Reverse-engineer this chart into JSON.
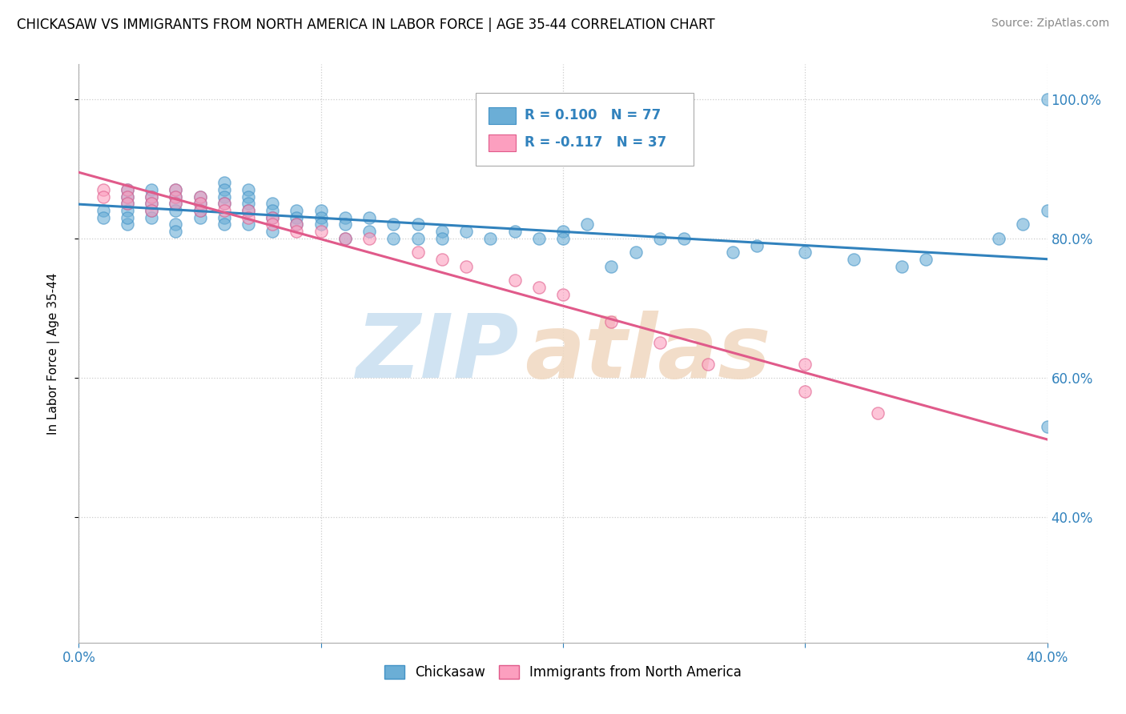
{
  "title": "CHICKASAW VS IMMIGRANTS FROM NORTH AMERICA IN LABOR FORCE | AGE 35-44 CORRELATION CHART",
  "source": "Source: ZipAtlas.com",
  "ylabel": "In Labor Force | Age 35-44",
  "xlim": [
    0.0,
    0.4
  ],
  "ylim": [
    0.22,
    1.05
  ],
  "xtick_labels": [
    "0.0%",
    "",
    "",
    "",
    "40.0%"
  ],
  "ytick_labels_right": [
    "40.0%",
    "60.0%",
    "80.0%",
    "100.0%"
  ],
  "yticks_right": [
    0.4,
    0.6,
    0.8,
    1.0
  ],
  "legend_line1": "R = 0.100   N = 77",
  "legend_line2": "R = -0.117   N = 37",
  "blue_color": "#6baed6",
  "blue_edge_color": "#4292c6",
  "pink_color": "#fc9fbf",
  "pink_edge_color": "#e05a8a",
  "blue_line_color": "#3182bd",
  "pink_line_color": "#e05a8a",
  "watermark_zip": "ZIP",
  "watermark_atlas": "atlas",
  "blue_scatter_x": [
    0.01,
    0.01,
    0.02,
    0.02,
    0.02,
    0.02,
    0.02,
    0.02,
    0.03,
    0.03,
    0.03,
    0.03,
    0.03,
    0.04,
    0.04,
    0.04,
    0.04,
    0.04,
    0.04,
    0.05,
    0.05,
    0.05,
    0.05,
    0.06,
    0.06,
    0.06,
    0.06,
    0.06,
    0.06,
    0.07,
    0.07,
    0.07,
    0.07,
    0.07,
    0.08,
    0.08,
    0.08,
    0.08,
    0.09,
    0.09,
    0.09,
    0.1,
    0.1,
    0.1,
    0.11,
    0.11,
    0.11,
    0.12,
    0.12,
    0.13,
    0.13,
    0.14,
    0.14,
    0.15,
    0.15,
    0.16,
    0.17,
    0.18,
    0.19,
    0.2,
    0.2,
    0.21,
    0.22,
    0.23,
    0.24,
    0.25,
    0.27,
    0.28,
    0.3,
    0.32,
    0.34,
    0.35,
    0.38,
    0.39,
    0.4,
    0.4,
    0.4
  ],
  "blue_scatter_y": [
    0.84,
    0.83,
    0.86,
    0.87,
    0.85,
    0.84,
    0.82,
    0.83,
    0.87,
    0.86,
    0.85,
    0.84,
    0.83,
    0.87,
    0.86,
    0.85,
    0.84,
    0.82,
    0.81,
    0.86,
    0.85,
    0.84,
    0.83,
    0.88,
    0.87,
    0.86,
    0.85,
    0.83,
    0.82,
    0.87,
    0.86,
    0.85,
    0.84,
    0.82,
    0.85,
    0.84,
    0.83,
    0.81,
    0.84,
    0.83,
    0.82,
    0.84,
    0.83,
    0.82,
    0.83,
    0.82,
    0.8,
    0.83,
    0.81,
    0.82,
    0.8,
    0.82,
    0.8,
    0.81,
    0.8,
    0.81,
    0.8,
    0.81,
    0.8,
    0.81,
    0.8,
    0.82,
    0.76,
    0.78,
    0.8,
    0.8,
    0.78,
    0.79,
    0.78,
    0.77,
    0.76,
    0.77,
    0.8,
    0.82,
    0.84,
    0.53,
    1.0
  ],
  "pink_scatter_x": [
    0.01,
    0.01,
    0.02,
    0.02,
    0.02,
    0.03,
    0.03,
    0.03,
    0.04,
    0.04,
    0.04,
    0.05,
    0.05,
    0.05,
    0.06,
    0.06,
    0.07,
    0.07,
    0.08,
    0.08,
    0.09,
    0.09,
    0.1,
    0.11,
    0.12,
    0.14,
    0.15,
    0.16,
    0.18,
    0.19,
    0.2,
    0.22,
    0.24,
    0.26,
    0.3,
    0.3,
    0.33
  ],
  "pink_scatter_y": [
    0.87,
    0.86,
    0.87,
    0.86,
    0.85,
    0.86,
    0.85,
    0.84,
    0.87,
    0.86,
    0.85,
    0.86,
    0.85,
    0.84,
    0.85,
    0.84,
    0.84,
    0.83,
    0.83,
    0.82,
    0.82,
    0.81,
    0.81,
    0.8,
    0.8,
    0.78,
    0.77,
    0.76,
    0.74,
    0.73,
    0.72,
    0.68,
    0.65,
    0.62,
    0.62,
    0.58,
    0.55
  ]
}
